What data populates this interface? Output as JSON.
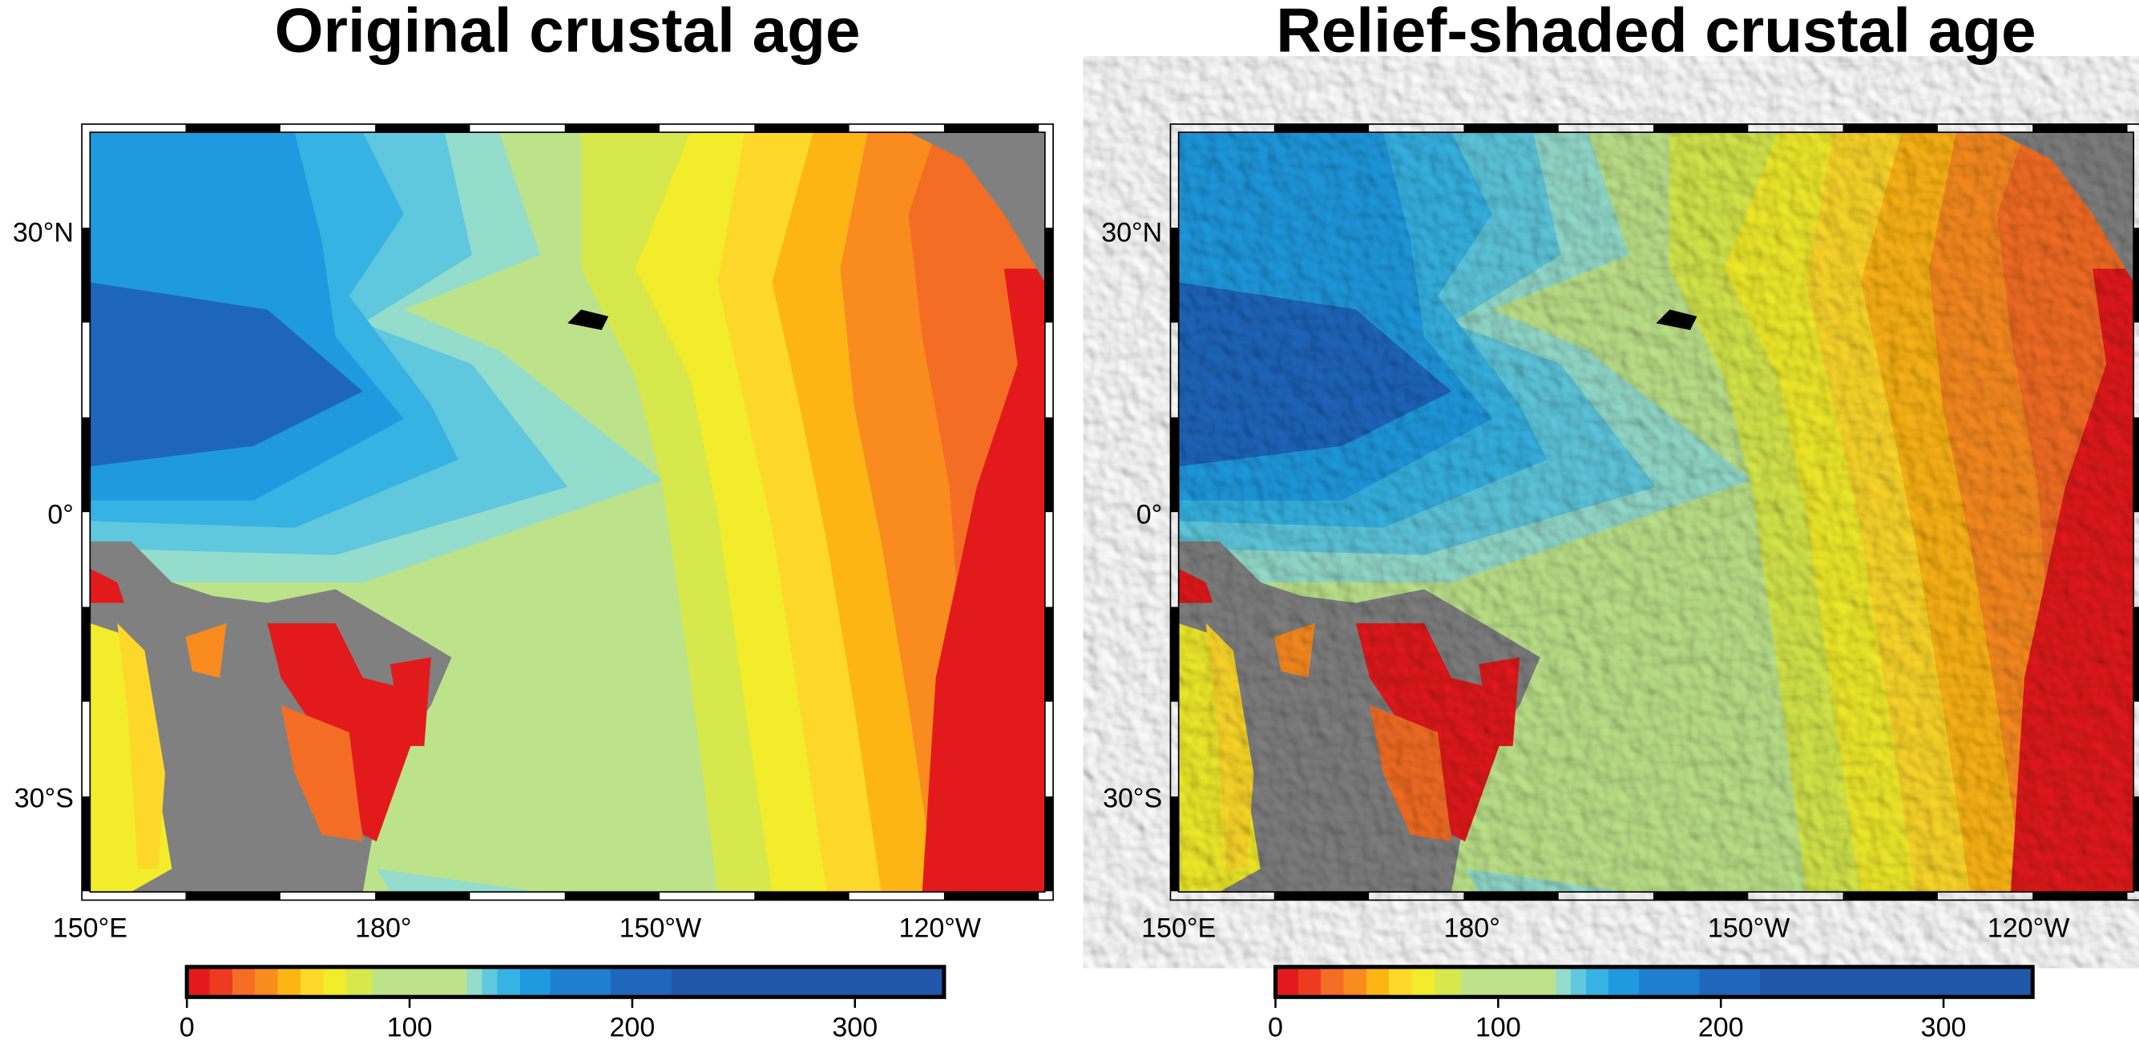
{
  "panels": [
    {
      "title": "Original crustal age"
    },
    {
      "title": "Relief-shaded crustal age"
    }
  ],
  "lon_labels": [
    "150°E",
    "180°",
    "150°W",
    "120°W"
  ],
  "lat_labels": [
    "30°N",
    "0°",
    "30°S"
  ],
  "colorbar": {
    "range": [
      0,
      340
    ],
    "ticks": [
      0,
      100,
      200,
      300
    ]
  }
}
